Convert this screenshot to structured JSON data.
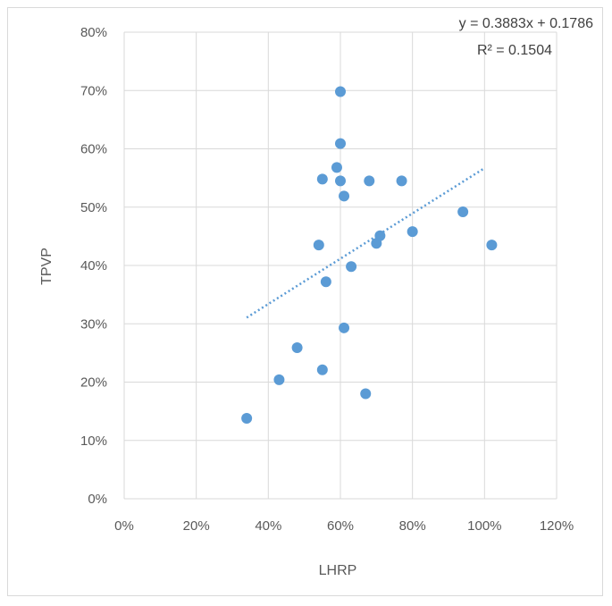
{
  "chart_data": {
    "type": "scatter",
    "xlabel": "LHRP",
    "ylabel": "TPVP",
    "xlim": [
      0,
      1.2
    ],
    "ylim": [
      0,
      0.8
    ],
    "x_ticks": [
      0,
      0.2,
      0.4,
      0.6,
      0.8,
      1.0,
      1.2
    ],
    "y_ticks": [
      0,
      0.1,
      0.2,
      0.3,
      0.4,
      0.5,
      0.6,
      0.7,
      0.8
    ],
    "x_tick_labels": [
      "0%",
      "20%",
      "40%",
      "60%",
      "80%",
      "100%",
      "120%"
    ],
    "y_tick_labels": [
      "0%",
      "10%",
      "20%",
      "30%",
      "40%",
      "50%",
      "60%",
      "70%",
      "80%"
    ],
    "grid": "major-both",
    "marker_color": "#5b9bd5",
    "trendline_color": "#5b9bd5",
    "series": [
      {
        "points": [
          {
            "x": 0.34,
            "y": 0.138
          },
          {
            "x": 0.43,
            "y": 0.204
          },
          {
            "x": 0.48,
            "y": 0.259
          },
          {
            "x": 0.54,
            "y": 0.435
          },
          {
            "x": 0.55,
            "y": 0.548
          },
          {
            "x": 0.55,
            "y": 0.221
          },
          {
            "x": 0.56,
            "y": 0.372
          },
          {
            "x": 0.59,
            "y": 0.568
          },
          {
            "x": 0.6,
            "y": 0.698
          },
          {
            "x": 0.6,
            "y": 0.609
          },
          {
            "x": 0.6,
            "y": 0.545
          },
          {
            "x": 0.61,
            "y": 0.519
          },
          {
            "x": 0.61,
            "y": 0.293
          },
          {
            "x": 0.63,
            "y": 0.398
          },
          {
            "x": 0.67,
            "y": 0.18
          },
          {
            "x": 0.68,
            "y": 0.545
          },
          {
            "x": 0.7,
            "y": 0.438
          },
          {
            "x": 0.71,
            "y": 0.451
          },
          {
            "x": 0.77,
            "y": 0.545
          },
          {
            "x": 0.8,
            "y": 0.458
          },
          {
            "x": 0.94,
            "y": 0.492
          },
          {
            "x": 1.02,
            "y": 0.435
          }
        ]
      }
    ],
    "trendline": {
      "slope": 0.3883,
      "intercept": 0.1786,
      "x_range": [
        0.34,
        1.0
      ],
      "equation_label": "y = 0.3883x + 0.1786",
      "r2_label": "R² = 0.1504"
    }
  }
}
